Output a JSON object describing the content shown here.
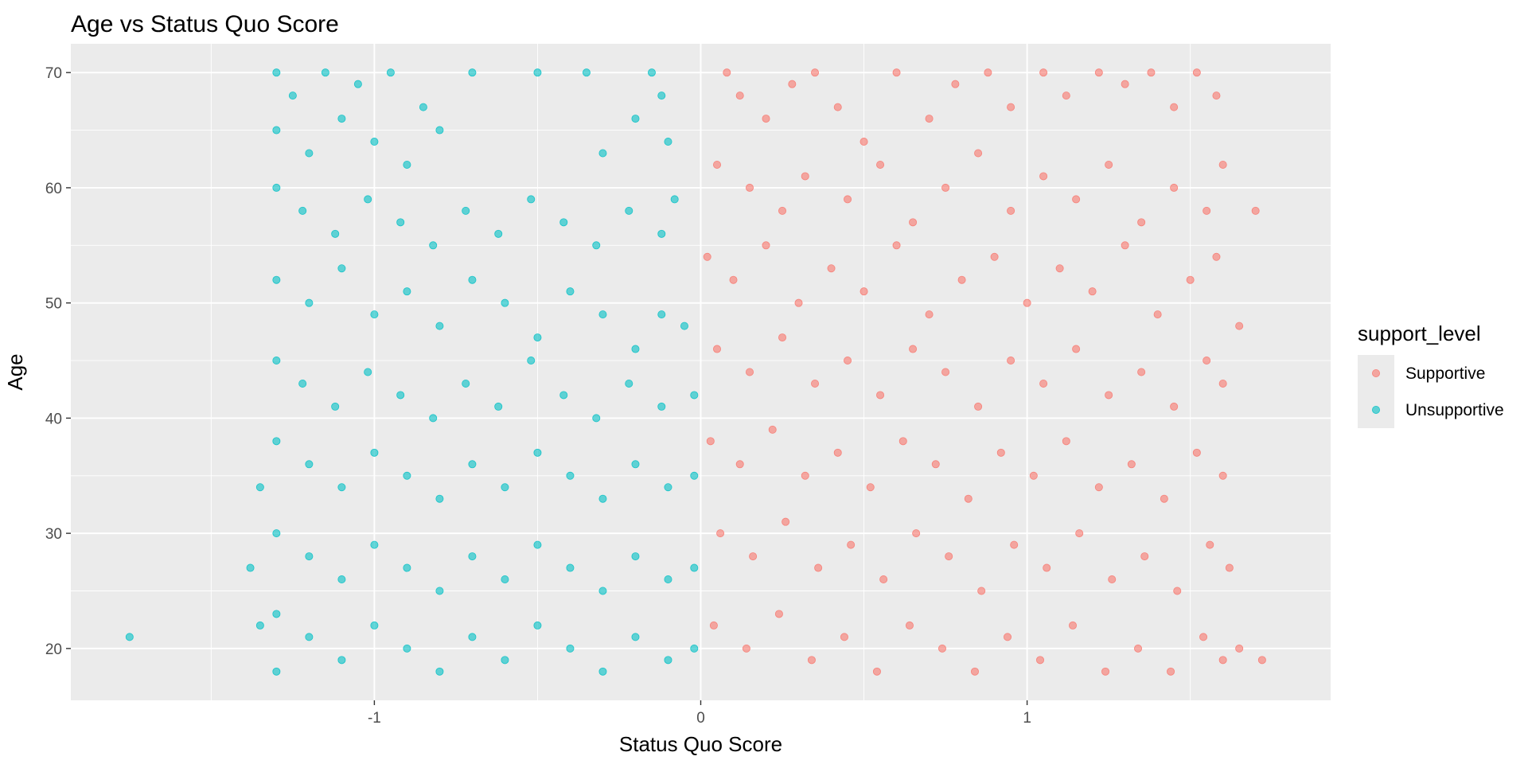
{
  "chart_data": {
    "type": "scatter",
    "title": "Age vs Status Quo Score",
    "xlabel": "Status Quo Score",
    "ylabel": "Age",
    "xlim": [
      -1.93,
      1.93
    ],
    "ylim": [
      15.5,
      72.5
    ],
    "x_ticks": [
      -1,
      0,
      1
    ],
    "x_tick_labels": [
      "-1",
      "0",
      "1"
    ],
    "x_minor_ticks": [
      -1.5,
      -0.5,
      0.5,
      1.5
    ],
    "y_ticks": [
      20,
      30,
      40,
      50,
      60,
      70
    ],
    "y_tick_labels": [
      "20",
      "30",
      "40",
      "50",
      "60",
      "70"
    ],
    "y_minor_ticks": [
      25,
      35,
      45,
      55,
      65
    ],
    "grid": true,
    "legend": {
      "title": "support_level",
      "position": "right"
    },
    "series": [
      {
        "name": "Supportive",
        "color": "#F8766D",
        "points": [
          [
            0.08,
            70
          ],
          [
            0.12,
            68
          ],
          [
            0.2,
            66
          ],
          [
            0.28,
            69
          ],
          [
            0.35,
            70
          ],
          [
            0.42,
            67
          ],
          [
            0.5,
            64
          ],
          [
            0.6,
            70
          ],
          [
            0.7,
            66
          ],
          [
            0.78,
            69
          ],
          [
            0.88,
            70
          ],
          [
            0.95,
            67
          ],
          [
            1.05,
            70
          ],
          [
            1.12,
            68
          ],
          [
            1.22,
            70
          ],
          [
            1.3,
            69
          ],
          [
            1.38,
            70
          ],
          [
            1.45,
            67
          ],
          [
            1.52,
            70
          ],
          [
            1.58,
            68
          ],
          [
            0.05,
            62
          ],
          [
            0.15,
            60
          ],
          [
            0.25,
            58
          ],
          [
            0.32,
            61
          ],
          [
            0.45,
            59
          ],
          [
            0.55,
            62
          ],
          [
            0.65,
            57
          ],
          [
            0.75,
            60
          ],
          [
            0.85,
            63
          ],
          [
            0.95,
            58
          ],
          [
            1.05,
            61
          ],
          [
            1.15,
            59
          ],
          [
            1.25,
            62
          ],
          [
            1.35,
            57
          ],
          [
            1.45,
            60
          ],
          [
            1.55,
            58
          ],
          [
            1.6,
            62
          ],
          [
            1.7,
            58
          ],
          [
            0.02,
            54
          ],
          [
            0.1,
            52
          ],
          [
            0.2,
            55
          ],
          [
            0.3,
            50
          ],
          [
            0.4,
            53
          ],
          [
            0.5,
            51
          ],
          [
            0.6,
            55
          ],
          [
            0.7,
            49
          ],
          [
            0.8,
            52
          ],
          [
            0.9,
            54
          ],
          [
            1.0,
            50
          ],
          [
            1.1,
            53
          ],
          [
            1.2,
            51
          ],
          [
            1.3,
            55
          ],
          [
            1.4,
            49
          ],
          [
            1.5,
            52
          ],
          [
            1.58,
            54
          ],
          [
            1.65,
            48
          ],
          [
            0.05,
            46
          ],
          [
            0.15,
            44
          ],
          [
            0.25,
            47
          ],
          [
            0.35,
            43
          ],
          [
            0.45,
            45
          ],
          [
            0.55,
            42
          ],
          [
            0.65,
            46
          ],
          [
            0.75,
            44
          ],
          [
            0.85,
            41
          ],
          [
            0.95,
            45
          ],
          [
            1.05,
            43
          ],
          [
            1.15,
            46
          ],
          [
            1.25,
            42
          ],
          [
            1.35,
            44
          ],
          [
            1.45,
            41
          ],
          [
            1.55,
            45
          ],
          [
            1.6,
            43
          ],
          [
            0.03,
            38
          ],
          [
            0.12,
            36
          ],
          [
            0.22,
            39
          ],
          [
            0.32,
            35
          ],
          [
            0.42,
            37
          ],
          [
            0.52,
            34
          ],
          [
            0.62,
            38
          ],
          [
            0.72,
            36
          ],
          [
            0.82,
            33
          ],
          [
            0.92,
            37
          ],
          [
            1.02,
            35
          ],
          [
            1.12,
            38
          ],
          [
            1.22,
            34
          ],
          [
            1.32,
            36
          ],
          [
            1.42,
            33
          ],
          [
            1.52,
            37
          ],
          [
            1.6,
            35
          ],
          [
            0.06,
            30
          ],
          [
            0.16,
            28
          ],
          [
            0.26,
            31
          ],
          [
            0.36,
            27
          ],
          [
            0.46,
            29
          ],
          [
            0.56,
            26
          ],
          [
            0.66,
            30
          ],
          [
            0.76,
            28
          ],
          [
            0.86,
            25
          ],
          [
            0.96,
            29
          ],
          [
            1.06,
            27
          ],
          [
            1.16,
            30
          ],
          [
            1.26,
            26
          ],
          [
            1.36,
            28
          ],
          [
            1.46,
            25
          ],
          [
            1.56,
            29
          ],
          [
            1.62,
            27
          ],
          [
            0.04,
            22
          ],
          [
            0.14,
            20
          ],
          [
            0.24,
            23
          ],
          [
            0.34,
            19
          ],
          [
            0.44,
            21
          ],
          [
            0.54,
            18
          ],
          [
            0.64,
            22
          ],
          [
            0.74,
            20
          ],
          [
            0.84,
            18
          ],
          [
            0.94,
            21
          ],
          [
            1.04,
            19
          ],
          [
            1.14,
            22
          ],
          [
            1.24,
            18
          ],
          [
            1.34,
            20
          ],
          [
            1.44,
            18
          ],
          [
            1.54,
            21
          ],
          [
            1.6,
            19
          ],
          [
            1.65,
            20
          ],
          [
            1.72,
            19
          ]
        ]
      },
      {
        "name": "Unsupportive",
        "color": "#00BFC4",
        "points": [
          [
            -1.3,
            70
          ],
          [
            -1.25,
            68
          ],
          [
            -1.15,
            70
          ],
          [
            -1.05,
            69
          ],
          [
            -0.95,
            70
          ],
          [
            -0.85,
            67
          ],
          [
            -0.7,
            70
          ],
          [
            -0.5,
            70
          ],
          [
            -0.35,
            70
          ],
          [
            -0.15,
            70
          ],
          [
            -0.12,
            68
          ],
          [
            -1.3,
            65
          ],
          [
            -1.2,
            63
          ],
          [
            -1.1,
            66
          ],
          [
            -1.0,
            64
          ],
          [
            -0.9,
            62
          ],
          [
            -0.8,
            65
          ],
          [
            -0.3,
            63
          ],
          [
            -0.2,
            66
          ],
          [
            -0.1,
            64
          ],
          [
            -1.3,
            60
          ],
          [
            -1.22,
            58
          ],
          [
            -1.12,
            56
          ],
          [
            -1.02,
            59
          ],
          [
            -0.92,
            57
          ],
          [
            -0.82,
            55
          ],
          [
            -0.72,
            58
          ],
          [
            -0.62,
            56
          ],
          [
            -0.52,
            59
          ],
          [
            -0.42,
            57
          ],
          [
            -0.32,
            55
          ],
          [
            -0.22,
            58
          ],
          [
            -0.12,
            56
          ],
          [
            -0.08,
            59
          ],
          [
            -1.3,
            52
          ],
          [
            -1.2,
            50
          ],
          [
            -1.1,
            53
          ],
          [
            -1.0,
            49
          ],
          [
            -0.9,
            51
          ],
          [
            -0.8,
            48
          ],
          [
            -0.7,
            52
          ],
          [
            -0.6,
            50
          ],
          [
            -0.5,
            47
          ],
          [
            -0.4,
            51
          ],
          [
            -0.3,
            49
          ],
          [
            -0.2,
            46
          ],
          [
            -0.12,
            49
          ],
          [
            -0.05,
            48
          ],
          [
            -1.3,
            45
          ],
          [
            -1.22,
            43
          ],
          [
            -1.12,
            41
          ],
          [
            -1.02,
            44
          ],
          [
            -0.92,
            42
          ],
          [
            -0.82,
            40
          ],
          [
            -0.72,
            43
          ],
          [
            -0.62,
            41
          ],
          [
            -0.52,
            45
          ],
          [
            -0.42,
            42
          ],
          [
            -0.32,
            40
          ],
          [
            -0.22,
            43
          ],
          [
            -0.12,
            41
          ],
          [
            -0.02,
            42
          ],
          [
            -1.3,
            38
          ],
          [
            -1.2,
            36
          ],
          [
            -1.1,
            34
          ],
          [
            -1.0,
            37
          ],
          [
            -0.9,
            35
          ],
          [
            -0.8,
            33
          ],
          [
            -0.7,
            36
          ],
          [
            -0.6,
            34
          ],
          [
            -0.5,
            37
          ],
          [
            -0.4,
            35
          ],
          [
            -0.3,
            33
          ],
          [
            -0.2,
            36
          ],
          [
            -0.1,
            34
          ],
          [
            -0.02,
            35
          ],
          [
            -1.35,
            34
          ],
          [
            -1.3,
            30
          ],
          [
            -1.2,
            28
          ],
          [
            -1.1,
            26
          ],
          [
            -1.0,
            29
          ],
          [
            -0.9,
            27
          ],
          [
            -0.8,
            25
          ],
          [
            -0.7,
            28
          ],
          [
            -0.6,
            26
          ],
          [
            -0.5,
            29
          ],
          [
            -0.4,
            27
          ],
          [
            -0.3,
            25
          ],
          [
            -0.2,
            28
          ],
          [
            -0.1,
            26
          ],
          [
            -0.02,
            27
          ],
          [
            -1.38,
            27
          ],
          [
            -1.3,
            23
          ],
          [
            -1.2,
            21
          ],
          [
            -1.1,
            19
          ],
          [
            -1.0,
            22
          ],
          [
            -0.9,
            20
          ],
          [
            -0.8,
            18
          ],
          [
            -0.7,
            21
          ],
          [
            -0.6,
            19
          ],
          [
            -0.5,
            22
          ],
          [
            -0.4,
            20
          ],
          [
            -0.3,
            18
          ],
          [
            -0.2,
            21
          ],
          [
            -0.1,
            19
          ],
          [
            -0.02,
            20
          ],
          [
            -1.3,
            18
          ],
          [
            -1.35,
            22
          ],
          [
            -1.75,
            21
          ]
        ]
      }
    ]
  }
}
